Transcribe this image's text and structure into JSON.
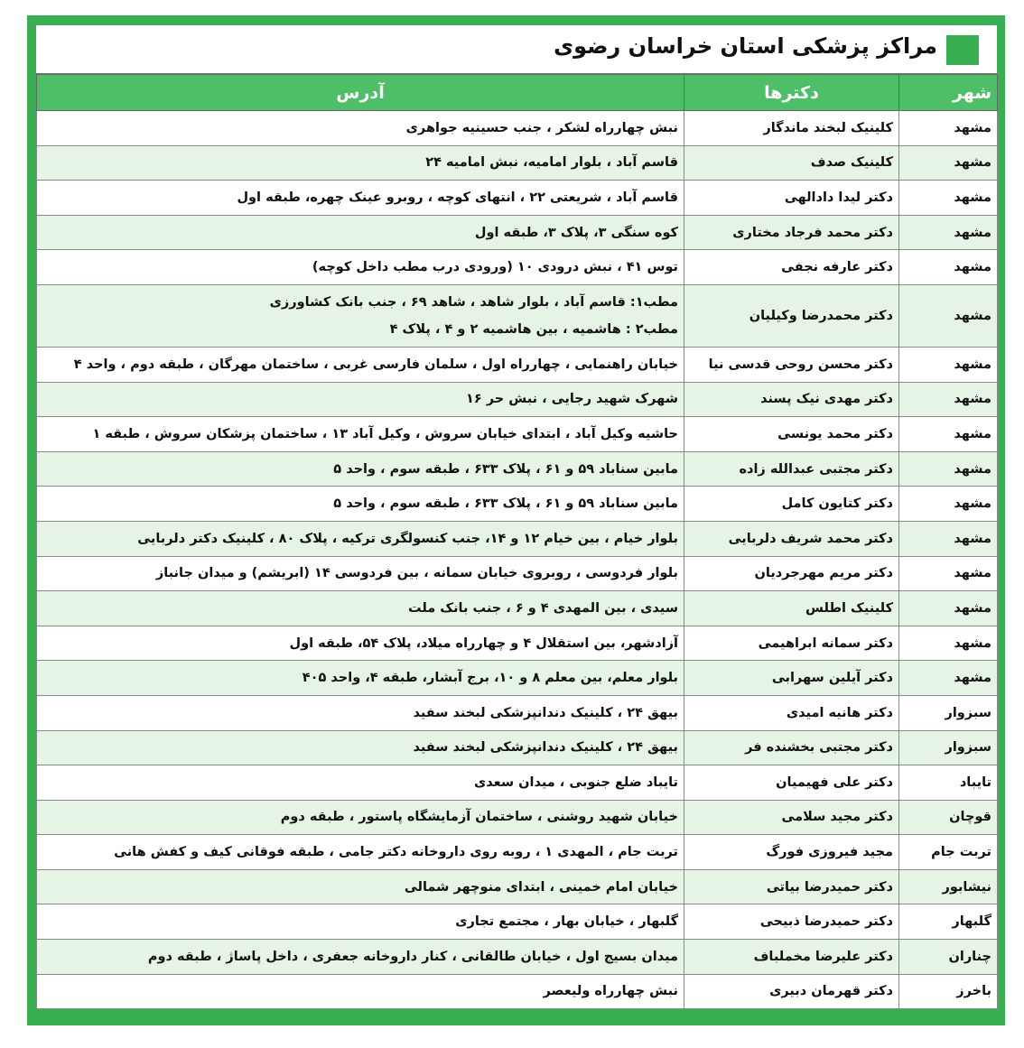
{
  "header": {
    "title": "مراکز پزشکی استان خراسان رضوی"
  },
  "table": {
    "columns": [
      "شهر",
      "دکترها",
      "آدرس"
    ],
    "rows": [
      [
        "مشهد",
        "کلینیک لبخند ماندگار",
        "نبش چهارراه لشکر ، جنب حسینیه جواهری"
      ],
      [
        "مشهد",
        "کلینیک صدف",
        "قاسم آباد ، بلوار امامیه، نبش امامیه ۲۴"
      ],
      [
        "مشهد",
        "دکتر لیدا دادالهی",
        "قاسم آباد ، شریعتی ۲۲ ، انتهای کوچه ، روبرو عینک چهره، طبقه اول"
      ],
      [
        "مشهد",
        "دکتر محمد فرجاد مختاری",
        "کوه سنگی ۳، پلاک ۳، طبقه اول"
      ],
      [
        "مشهد",
        "دکتر عارفه نجفی",
        "توس ۴۱ ، نبش درودی ۱۰ (ورودی درب مطب داخل کوچه)"
      ],
      [
        "مشهد",
        "دکتر محمدرضا وکیلیان",
        [
          "مطب۱: قاسم آباد ، بلوار شاهد ، شاهد ۶۹ ، جنب بانک کشاورزی",
          "مطب۲ : هاشمیه ، بین هاشمیه ۲ و ۴ ، پلاک ۴"
        ]
      ],
      [
        "مشهد",
        "دکتر محسن روحی قدسی نیا",
        "خیابان راهنمایی ، چهارراه اول ، سلمان فارسی غربی ، ساختمان مهرگان ، طبقه دوم ، واحد ۴"
      ],
      [
        "مشهد",
        "دکتر مهدی نیک پسند",
        "شهرک شهید رجایی ، نبش حر ۱۶"
      ],
      [
        "مشهد",
        "دکتر محمد یونسی",
        "حاشیه وکیل آباد ، ابتدای خیابان سروش ، وکیل آباد ۱۳ ، ساختمان پزشکان سروش ، طبقه ۱"
      ],
      [
        "مشهد",
        "دکتر مجتبی عبدالله زاده",
        "مابین سناباد ۵۹ و ۶۱ ، پلاک ۶۳۳ ، طبقه سوم ، واحد ۵"
      ],
      [
        "مشهد",
        "دکتر کتایون کامل",
        "مابین سناباد ۵۹ و ۶۱ ، پلاک ۶۳۳ ، طبقه سوم ، واحد ۵"
      ],
      [
        "مشهد",
        "دکتر محمد شریف دلربایی",
        "بلوار خیام ، بین خیام ۱۲ و ۱۴، جنب کنسولگری ترکیه ، پلاک ۸۰ ، کلینیک دکتر دلربایی"
      ],
      [
        "مشهد",
        "دکتر مریم مهرجردیان",
        "بلوار فردوسی ، روبروی خیابان سمانه ، بین فردوسی ۱۴ (ابریشم) و میدان جانباز"
      ],
      [
        "مشهد",
        "کلینیک اطلس",
        "سیدی ، بین المهدی ۴ و ۶ ، جنب بانک ملت"
      ],
      [
        "مشهد",
        "دکتر سمانه ابراهیمی",
        "آزادشهر، بین استقلال ۴ و چهارراه میلاد، پلاک ۵۴، طبقه اول"
      ],
      [
        "مشهد",
        "دکتر آیلین سهرابی",
        "بلوار معلم، بین معلم ۸ و ۱۰، برج آبشار، طبقه ۴، واحد ۴۰۵"
      ],
      [
        "سبزوار",
        "دکتر هانیه امیدی",
        "بیهق ۲۴ ، کلینیک دندانپزشکی لبخند سفید"
      ],
      [
        "سبزوار",
        "دکتر مجتبی بخشنده فر",
        "بیهق ۲۴ ، کلینیک دندانپزشکی لبخند سفید"
      ],
      [
        "تایباد",
        "دکتر علی فهیمیان",
        "تایباد ضلع جنوبی ، میدان سعدی"
      ],
      [
        "قوچان",
        "دکتر مجید سلامی",
        "خیابان شهید روشنی ، ساختمان آزمایشگاه پاستور ، طبقه دوم"
      ],
      [
        "تربت جام",
        "مجید فیروزی فورگ",
        "تربت جام ، المهدی ۱ ، روبه روی داروخانه دکتر جامی ، طبقه فوقانی کیف و کفش هانی"
      ],
      [
        "نیشابور",
        "دکتر حمیدرضا بیاتی",
        "خیابان امام خمینی ، ابتدای منوچهر شمالی"
      ],
      [
        "گلبهار",
        "دکتر حمیدرضا ذبیحی",
        "گلبهار ، خیابان بهار ، مجتمع تجاری"
      ],
      [
        "چناران",
        "دکتر علیرضا مخملباف",
        "میدان بسیج اول ، خیابان طالقانی ، کنار داروخانه جعفری ، داخل پاساژ ، طبقه دوم"
      ],
      [
        "باخرز",
        "دکتر قهرمان دبیری",
        "نبش چهارراه ولیعصر"
      ]
    ]
  }
}
